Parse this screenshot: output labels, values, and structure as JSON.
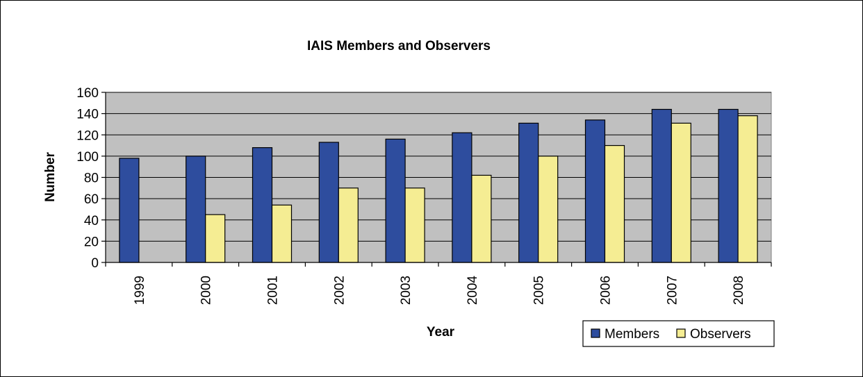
{
  "chart_data": {
    "type": "bar",
    "title": "IAIS Members and Observers",
    "xlabel": "Year",
    "ylabel": "Number",
    "categories": [
      "1999",
      "2000",
      "2001",
      "2002",
      "2003",
      "2004",
      "2005",
      "2006",
      "2007",
      "2008"
    ],
    "series": [
      {
        "name": "Members",
        "color": "#2E4D9E",
        "values": [
          98,
          100,
          108,
          113,
          116,
          122,
          131,
          134,
          144,
          144
        ]
      },
      {
        "name": "Observers",
        "color": "#F5ED93",
        "values": [
          null,
          45,
          54,
          70,
          70,
          82,
          100,
          110,
          131,
          138
        ]
      }
    ],
    "ylim": [
      0,
      160
    ],
    "yticks": [
      0,
      20,
      40,
      60,
      80,
      100,
      120,
      140,
      160
    ],
    "grid": true,
    "plot_background": "#C0C0C0",
    "legend_position": "bottom-right"
  }
}
